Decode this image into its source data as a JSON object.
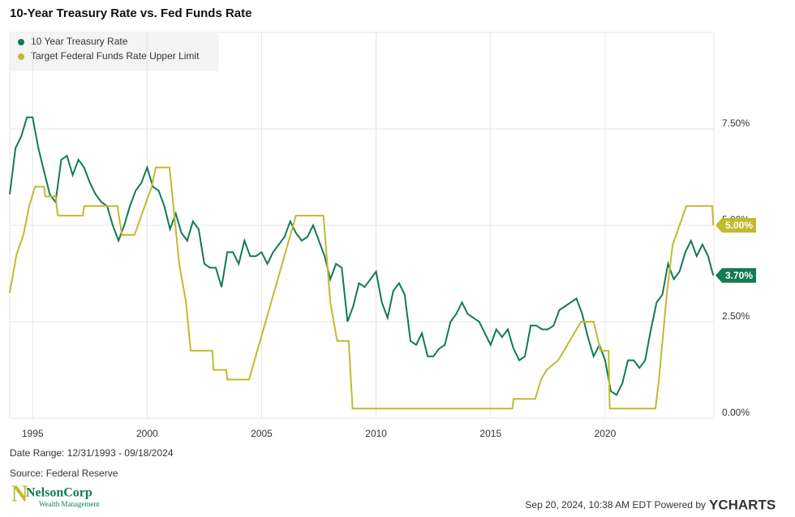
{
  "chart_data": {
    "type": "line",
    "title": "10-Year Treasury Rate vs. Fed Funds Rate",
    "xlim": [
      1994,
      2024.75
    ],
    "xticks": [
      1995,
      2000,
      2005,
      2010,
      2015,
      2020
    ],
    "ylim": [
      0,
      10
    ],
    "yticks": [
      {
        "value": 0,
        "label": "0.00%"
      },
      {
        "value": 2.5,
        "label": "2.50%"
      },
      {
        "value": 5,
        "label": "5.00%"
      },
      {
        "value": 7.5,
        "label": "7.50%"
      }
    ],
    "grid": true,
    "legend": "top-left",
    "series": [
      {
        "name": "10 Year Treasury Rate",
        "color": "#137a52",
        "x": [
          1994.0,
          1994.25,
          1994.5,
          1994.75,
          1995.0,
          1995.25,
          1995.5,
          1995.75,
          1996.0,
          1996.25,
          1996.5,
          1996.75,
          1997.0,
          1997.25,
          1997.5,
          1997.75,
          1998.0,
          1998.25,
          1998.5,
          1998.75,
          1999.0,
          1999.25,
          1999.5,
          1999.75,
          2000.0,
          2000.25,
          2000.5,
          2000.75,
          2001.0,
          2001.25,
          2001.5,
          2001.75,
          2002.0,
          2002.25,
          2002.5,
          2002.75,
          2003.0,
          2003.25,
          2003.5,
          2003.75,
          2004.0,
          2004.25,
          2004.5,
          2004.75,
          2005.0,
          2005.25,
          2005.5,
          2005.75,
          2006.0,
          2006.25,
          2006.5,
          2006.75,
          2007.0,
          2007.25,
          2007.5,
          2007.75,
          2008.0,
          2008.25,
          2008.5,
          2008.75,
          2009.0,
          2009.25,
          2009.5,
          2009.75,
          2010.0,
          2010.25,
          2010.5,
          2010.75,
          2011.0,
          2011.25,
          2011.5,
          2011.75,
          2012.0,
          2012.25,
          2012.5,
          2012.75,
          2013.0,
          2013.25,
          2013.5,
          2013.75,
          2014.0,
          2014.25,
          2014.5,
          2014.75,
          2015.0,
          2015.25,
          2015.5,
          2015.75,
          2016.0,
          2016.25,
          2016.5,
          2016.75,
          2017.0,
          2017.25,
          2017.5,
          2017.75,
          2018.0,
          2018.25,
          2018.5,
          2018.75,
          2019.0,
          2019.25,
          2019.5,
          2019.75,
          2020.0,
          2020.25,
          2020.5,
          2020.75,
          2021.0,
          2021.25,
          2021.5,
          2021.75,
          2022.0,
          2022.25,
          2022.5,
          2022.75,
          2023.0,
          2023.25,
          2023.5,
          2023.75,
          2024.0,
          2024.25,
          2024.5,
          2024.72
        ],
        "values": [
          5.8,
          7.0,
          7.3,
          7.8,
          7.8,
          7.0,
          6.4,
          5.8,
          5.6,
          6.7,
          6.8,
          6.3,
          6.7,
          6.5,
          6.1,
          5.8,
          5.6,
          5.5,
          5.0,
          4.6,
          5.0,
          5.5,
          5.9,
          6.1,
          6.5,
          6.0,
          5.9,
          5.5,
          4.9,
          5.3,
          4.8,
          4.6,
          5.1,
          4.9,
          4.0,
          3.9,
          3.9,
          3.4,
          4.3,
          4.3,
          4.0,
          4.6,
          4.2,
          4.2,
          4.3,
          4.0,
          4.3,
          4.5,
          4.7,
          5.1,
          4.8,
          4.6,
          4.7,
          5.0,
          4.6,
          4.2,
          3.6,
          4.0,
          3.9,
          2.5,
          2.9,
          3.5,
          3.4,
          3.6,
          3.8,
          3.0,
          2.6,
          3.3,
          3.5,
          3.2,
          2.0,
          1.9,
          2.2,
          1.6,
          1.6,
          1.8,
          1.9,
          2.5,
          2.7,
          3.0,
          2.7,
          2.6,
          2.5,
          2.2,
          1.9,
          2.3,
          2.1,
          2.3,
          1.8,
          1.5,
          1.6,
          2.4,
          2.4,
          2.3,
          2.3,
          2.4,
          2.8,
          2.9,
          3.0,
          3.1,
          2.7,
          2.1,
          1.6,
          1.9,
          1.5,
          0.7,
          0.6,
          0.9,
          1.5,
          1.5,
          1.3,
          1.5,
          2.3,
          3.0,
          3.2,
          4.0,
          3.6,
          3.8,
          4.3,
          4.6,
          4.2,
          4.5,
          4.2,
          3.7
        ],
        "value_labels": [
          null,
          null,
          null,
          null,
          null,
          null,
          null,
          null,
          null,
          null,
          null,
          null,
          null,
          null,
          null,
          null,
          null,
          null,
          null,
          null,
          null,
          null,
          null,
          null,
          null,
          null,
          null,
          null,
          null,
          null,
          null,
          null,
          null,
          null,
          null,
          null,
          null,
          null,
          null,
          null,
          null,
          null,
          null,
          null,
          null,
          null,
          null,
          null,
          null,
          null,
          null,
          null,
          null,
          null,
          null,
          null,
          null,
          null,
          null,
          null,
          null,
          null,
          null,
          null,
          null,
          null,
          null,
          null,
          null,
          null,
          null,
          null,
          null,
          null,
          null,
          null,
          null,
          null,
          null,
          null,
          null,
          null,
          null,
          null,
          null,
          null,
          null,
          null,
          null,
          null,
          null,
          null,
          null,
          null,
          null,
          null,
          null,
          null,
          null,
          null,
          null,
          null,
          null,
          null,
          null,
          null,
          null,
          null,
          null,
          null,
          null,
          null,
          null,
          null,
          null,
          null,
          null,
          null,
          null,
          null,
          null,
          null,
          null,
          "3.70%"
        ]
      },
      {
        "name": "Target Federal Funds Rate Upper Limit",
        "color": "#c2ba2e",
        "x": [
          1994.0,
          1994.15,
          1994.3,
          1994.6,
          1994.85,
          1995.1,
          1995.5,
          1995.55,
          1996.0,
          1996.1,
          1997.2,
          1997.25,
          1998.7,
          1998.9,
          1999.45,
          1999.9,
          2000.2,
          2000.38,
          2000.98,
          2001.4,
          2001.7,
          2001.9,
          2002.85,
          2002.9,
          2003.45,
          2003.5,
          2004.45,
          2006.5,
          2007.7,
          2008.0,
          2008.3,
          2008.8,
          2008.97,
          2015.95,
          2016.0,
          2016.95,
          2017.2,
          2017.45,
          2017.95,
          2018.95,
          2019.5,
          2019.8,
          2020.15,
          2020.2,
          2022.2,
          2022.35,
          2022.7,
          2022.95,
          2023.4,
          2023.55,
          2024.68,
          2024.72
        ],
        "values": [
          3.25,
          3.75,
          4.25,
          4.75,
          5.5,
          6.0,
          6.0,
          5.75,
          5.75,
          5.25,
          5.25,
          5.5,
          5.5,
          4.75,
          4.75,
          5.5,
          6.0,
          6.5,
          6.5,
          4.0,
          3.0,
          1.75,
          1.75,
          1.25,
          1.25,
          1.0,
          1.0,
          5.25,
          5.25,
          3.0,
          2.0,
          2.0,
          0.25,
          0.25,
          0.5,
          0.5,
          1.0,
          1.25,
          1.5,
          2.5,
          2.5,
          1.75,
          1.75,
          0.25,
          0.25,
          1.0,
          3.25,
          4.5,
          5.25,
          5.5,
          5.5,
          5.0
        ],
        "value_labels": [
          null,
          null,
          null,
          null,
          null,
          null,
          null,
          null,
          null,
          null,
          null,
          null,
          null,
          null,
          null,
          null,
          null,
          null,
          null,
          null,
          null,
          null,
          null,
          null,
          null,
          null,
          null,
          null,
          null,
          null,
          null,
          null,
          null,
          null,
          null,
          null,
          null,
          null,
          null,
          null,
          null,
          null,
          null,
          null,
          null,
          null,
          null,
          null,
          null,
          null,
          null,
          "5.00%"
        ]
      }
    ]
  },
  "footer": {
    "date_range": "Date Range: 12/31/1993 - 09/18/2024",
    "source": "Source: Federal Reserve",
    "timestamp": "Sep 20, 2024, 10:38 AM EDT Powered by",
    "brand": "YCHARTS",
    "logo_name": "NelsonCorp",
    "logo_tagline": "Wealth Management"
  }
}
